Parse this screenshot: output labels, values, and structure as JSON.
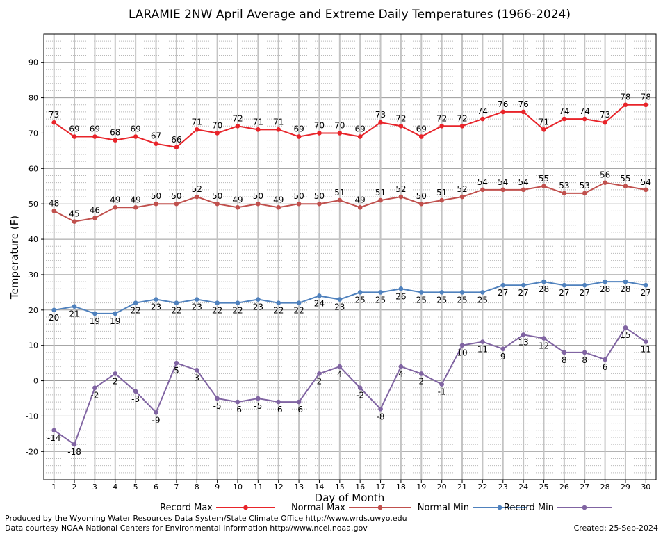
{
  "chart_data": {
    "type": "line",
    "title": "LARAMIE 2NW April Average and Extreme Daily Temperatures (1966-2024)",
    "xlabel": "Day of Month",
    "ylabel": "Temperature (F)",
    "x": [
      1,
      2,
      3,
      4,
      5,
      6,
      7,
      8,
      9,
      10,
      11,
      12,
      13,
      14,
      15,
      16,
      17,
      18,
      19,
      20,
      21,
      22,
      23,
      24,
      25,
      26,
      27,
      28,
      29,
      30
    ],
    "xlim": [
      0.5,
      30.5
    ],
    "ylim": [
      -28,
      98
    ],
    "y_ticks": [
      -20,
      -10,
      0,
      10,
      20,
      30,
      40,
      50,
      60,
      70,
      80,
      90
    ],
    "grid": true,
    "legend_position": "bottom",
    "series": [
      {
        "name": "Record Max",
        "color": "#e8242a",
        "label_position": "above",
        "values": [
          73,
          69,
          69,
          68,
          69,
          67,
          66,
          71,
          70,
          72,
          71,
          71,
          69,
          70,
          70,
          69,
          73,
          72,
          69,
          72,
          72,
          74,
          76,
          76,
          71,
          74,
          74,
          73,
          78,
          78
        ]
      },
      {
        "name": "Normal Max",
        "color": "#c0504d",
        "label_position": "above",
        "values": [
          48,
          45,
          46,
          49,
          49,
          50,
          50,
          52,
          50,
          49,
          50,
          49,
          50,
          50,
          51,
          49,
          51,
          52,
          50,
          51,
          52,
          54,
          54,
          54,
          55,
          53,
          53,
          56,
          55,
          54
        ]
      },
      {
        "name": "Normal Min",
        "color": "#4f81bd",
        "label_position": "below",
        "values": [
          20,
          21,
          19,
          19,
          22,
          23,
          22,
          23,
          22,
          22,
          23,
          22,
          22,
          24,
          23,
          25,
          25,
          26,
          25,
          25,
          25,
          25,
          27,
          27,
          28,
          27,
          27,
          28,
          28,
          27
        ]
      },
      {
        "name": "Record Min",
        "color": "#8064a2",
        "label_position": "below",
        "values": [
          -14,
          -18,
          -2,
          2,
          -3,
          -9,
          5,
          3,
          -5,
          -6,
          -5,
          -6,
          -6,
          2,
          4,
          -2,
          -8,
          4,
          2,
          -1,
          10,
          11,
          9,
          13,
          12,
          8,
          8,
          6,
          15,
          11
        ]
      }
    ]
  },
  "footer": {
    "produced_by": "Produced by the Wyoming Water Resources Data System/State Climate Office http://www.wrds.uwyo.edu",
    "courtesy": "Data courtesy NOAA National Centers for Environmental Information http://www.ncei.noaa.gov",
    "created": "Created:  25-Sep-2024"
  }
}
